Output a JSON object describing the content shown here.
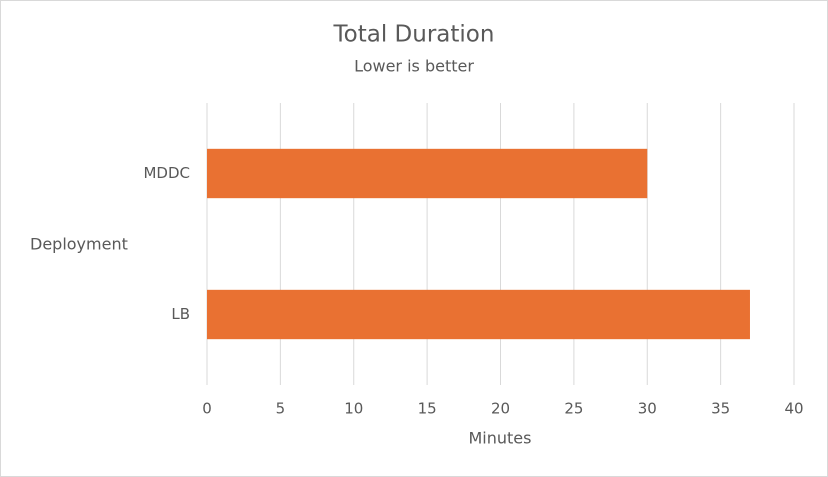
{
  "chart_data": {
    "type": "hbar",
    "title": "Total Duration",
    "subtitle": "Lower is better",
    "x_label": "Minutes",
    "y_label": "Deployment",
    "categories": [
      "MDDC",
      "LB"
    ],
    "values": [
      30,
      37
    ],
    "color": "#e97132",
    "xlim": [
      0,
      40
    ],
    "xticks": [
      0,
      5,
      10,
      15,
      20,
      25,
      30,
      35,
      40
    ],
    "grid": true
  }
}
